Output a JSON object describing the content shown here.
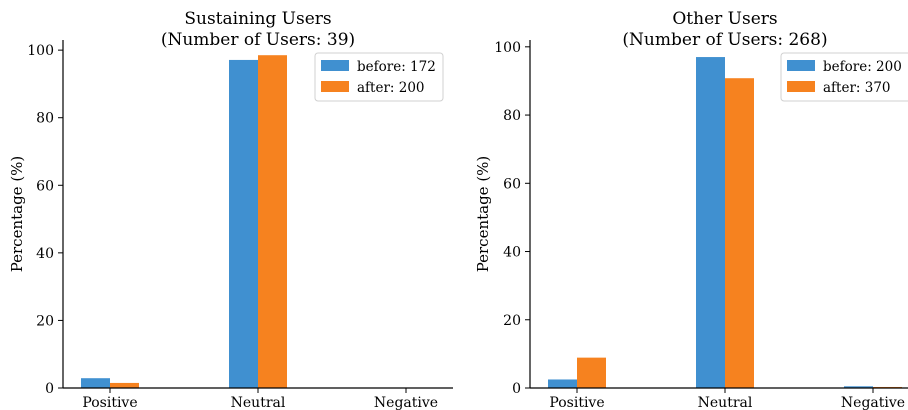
{
  "chart_data": [
    {
      "type": "bar",
      "title": [
        "Sustaining Users",
        "(Number of Users: 39)"
      ],
      "ylabel": "Percentage (%)",
      "xlabel": "",
      "categories": [
        "Positive",
        "Neutral",
        "Negative"
      ],
      "ylim": [
        0,
        103
      ],
      "yticks": [
        0,
        20,
        40,
        60,
        80,
        100
      ],
      "series": [
        {
          "name": "before: 172",
          "color": "#4090d0",
          "values": [
            2.9,
            97.1,
            0
          ]
        },
        {
          "name": "after: 200",
          "color": "#f6821f",
          "values": [
            1.5,
            98.5,
            0
          ]
        }
      ],
      "legend": "top-right",
      "grid": false
    },
    {
      "type": "bar",
      "title": [
        "Other Users",
        "(Number of Users: 268)"
      ],
      "ylabel": "Percentage (%)",
      "xlabel": "",
      "categories": [
        "Positive",
        "Neutral",
        "Negative"
      ],
      "ylim": [
        0,
        102
      ],
      "yticks": [
        0,
        20,
        40,
        60,
        80,
        100
      ],
      "series": [
        {
          "name": "before: 200",
          "color": "#4090d0",
          "values": [
            2.5,
            97.0,
            0.5
          ]
        },
        {
          "name": "after: 370",
          "color": "#f6821f",
          "values": [
            8.9,
            90.8,
            0.3
          ]
        }
      ],
      "legend": "top-right",
      "grid": false
    }
  ]
}
